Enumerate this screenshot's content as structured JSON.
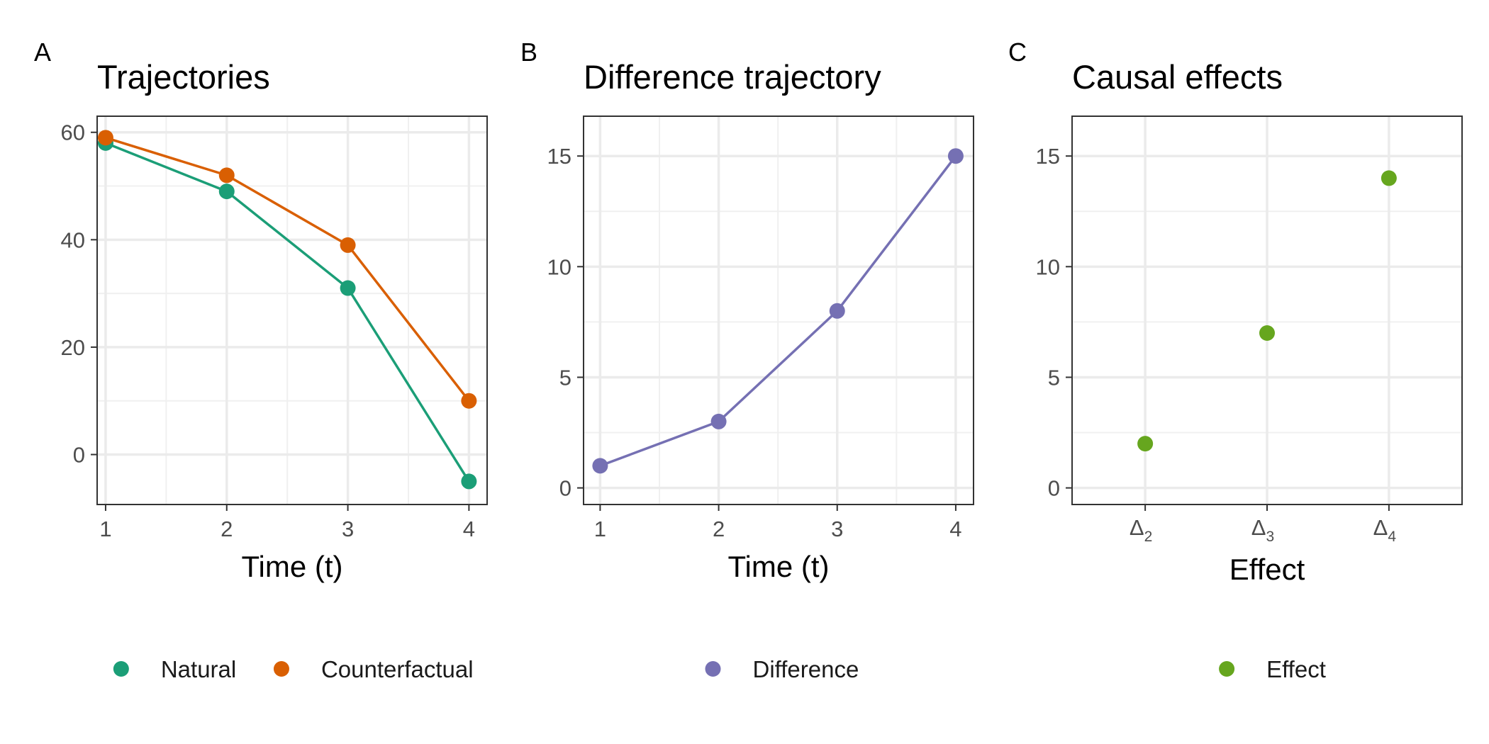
{
  "chart_data": [
    {
      "type": "line",
      "panel": "A",
      "title": "Trajectories",
      "xlabel": "Time (t)",
      "ylabel": "",
      "x": [
        1,
        2,
        3,
        4
      ],
      "xlim": [
        0.93,
        4.15
      ],
      "ylim": [
        -9.3,
        63
      ],
      "xticks": [
        1,
        2,
        3,
        4
      ],
      "yticks": [
        0,
        20,
        40,
        60
      ],
      "xminor": [
        1.5,
        2.5,
        3.5
      ],
      "yminor": [
        -10,
        10,
        30,
        50
      ],
      "grid": true,
      "legend": "bottom",
      "series": [
        {
          "name": "Natural",
          "values": [
            58,
            49,
            31,
            -5
          ],
          "color": "#1b9e77"
        },
        {
          "name": "Counterfactual",
          "values": [
            59,
            52,
            39,
            10
          ],
          "color": "#d95f02"
        }
      ]
    },
    {
      "type": "line",
      "panel": "B",
      "title": "Difference trajectory",
      "xlabel": "Time (t)",
      "ylabel": "",
      "x": [
        1,
        2,
        3,
        4
      ],
      "xlim": [
        0.86,
        4.15
      ],
      "ylim": [
        -0.75,
        16.8
      ],
      "xticks": [
        1,
        2,
        3,
        4
      ],
      "yticks": [
        0,
        5,
        10,
        15
      ],
      "xminor": [
        1.5,
        2.5,
        3.5
      ],
      "yminor": [
        2.5,
        7.5,
        12.5
      ],
      "grid": true,
      "legend": "bottom",
      "series": [
        {
          "name": "Difference",
          "values": [
            1,
            3,
            8,
            15
          ],
          "color": "#7570b3"
        }
      ]
    },
    {
      "type": "scatter",
      "panel": "C",
      "title": "Causal effects",
      "xlabel": "Effect",
      "ylabel": "",
      "categories": [
        "Δ",
        "Δ",
        "Δ"
      ],
      "category_subscripts": [
        "2",
        "3",
        "4"
      ],
      "xlim": [
        0.4,
        3.6
      ],
      "ylim": [
        -0.75,
        16.8
      ],
      "yticks": [
        0,
        5,
        10,
        15
      ],
      "yminor": [
        2.5,
        7.5,
        12.5
      ],
      "grid": true,
      "legend": "bottom",
      "series": [
        {
          "name": "Effect",
          "values": [
            2,
            7,
            14
          ],
          "color": "#66a61e"
        }
      ]
    }
  ]
}
